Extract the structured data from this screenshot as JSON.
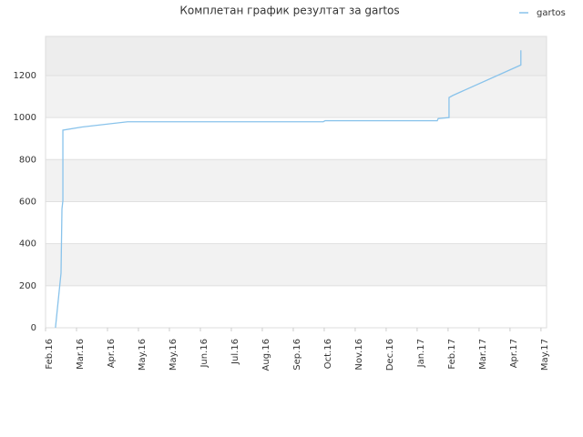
{
  "chart_data": {
    "type": "line",
    "title": "Комплетан график резултат за gartos",
    "x": [
      0.32,
      0.5,
      0.53,
      0.56,
      0.56,
      1.18,
      2.65,
      8.97,
      9.03,
      12.65,
      12.68,
      13.03,
      13.03,
      13.15,
      15.35,
      15.35
    ],
    "series": [
      {
        "name": "gartos",
        "color": "#89c3eb",
        "values": [
          0,
          260,
          565,
          605,
          940,
          955,
          980,
          980,
          985,
          985,
          995,
          1000,
          1095,
          1105,
          1250,
          1320
        ]
      }
    ],
    "xlim": [
      0,
      16.18
    ],
    "xticks": [
      {
        "value": 0,
        "label": "Feb.16"
      },
      {
        "value": 1,
        "label": "Mar.16"
      },
      {
        "value": 2,
        "label": "Apr.16"
      },
      {
        "value": 3,
        "label": "May.16"
      },
      {
        "value": 4,
        "label": "May.16"
      },
      {
        "value": 5,
        "label": "Jun.16"
      },
      {
        "value": 6,
        "label": "Jul.16"
      },
      {
        "value": 7,
        "label": "Aug.16"
      },
      {
        "value": 8,
        "label": "Sep.16"
      },
      {
        "value": 9,
        "label": "Oct.16"
      },
      {
        "value": 10,
        "label": "Nov.16"
      },
      {
        "value": 11,
        "label": "Dec.16"
      },
      {
        "value": 12,
        "label": "Jan.17"
      },
      {
        "value": 13,
        "label": "Feb.17"
      },
      {
        "value": 14,
        "label": "Mar.17"
      },
      {
        "value": 15,
        "label": "Apr.17"
      },
      {
        "value": 16,
        "label": "May.17"
      }
    ],
    "ylim": [
      0,
      1386
    ],
    "yticks": [
      0,
      200,
      400,
      600,
      800,
      1000,
      1200
    ],
    "grid": true,
    "legend": "top-right"
  }
}
